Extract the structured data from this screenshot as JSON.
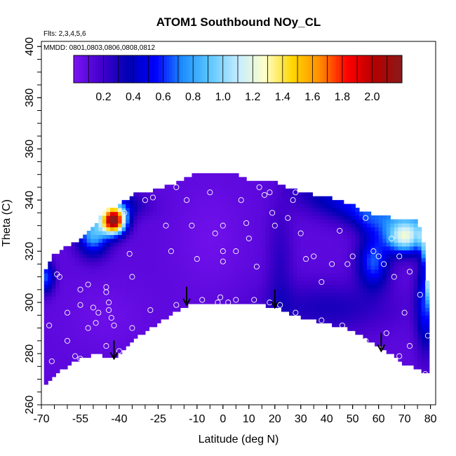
{
  "chart_data": {
    "type": "heatmap",
    "title": "ATOM1 Southbound NOy_CL",
    "flights_note": "Flts: 2,3,4,5,6",
    "dates_note": "MMDD: 0801,0803,0806,0808,0812",
    "xlabel": "Latitude (deg N)",
    "ylabel": "Theta (C)",
    "xlim": [
      -70,
      82
    ],
    "ylim": [
      260,
      402
    ],
    "x_ticks": [
      -70,
      -55,
      -40,
      -25,
      -10,
      0,
      10,
      20,
      30,
      40,
      50,
      60,
      70,
      80
    ],
    "y_ticks": [
      260,
      280,
      300,
      320,
      340,
      360,
      380,
      400
    ],
    "colorbar": {
      "range": [
        0.0,
        2.2
      ],
      "ticks": [
        0.2,
        0.4,
        0.6,
        0.8,
        1.0,
        1.2,
        1.4,
        1.6,
        1.8,
        2.0
      ],
      "colors": [
        "#7a14f2",
        "#4400cc",
        "#0000b4",
        "#0000ff",
        "#1e90ff",
        "#5ec8ff",
        "#c4ecff",
        "#ffffc8",
        "#ffd700",
        "#ff8c00",
        "#ff0000",
        "#b40000",
        "#8b1a1a"
      ]
    },
    "field": {
      "base_value": 0.1,
      "lower_boundary": [
        [
          -69,
          267
        ],
        [
          -66,
          270
        ],
        [
          -58,
          277
        ],
        [
          -48,
          280
        ],
        [
          -42,
          278
        ],
        [
          -35,
          285
        ],
        [
          -25,
          292
        ],
        [
          -16,
          298
        ],
        [
          -8,
          300
        ],
        [
          0,
          300
        ],
        [
          10,
          300
        ],
        [
          20,
          298
        ],
        [
          30,
          294
        ],
        [
          40,
          292
        ],
        [
          50,
          289
        ],
        [
          60,
          283
        ],
        [
          70,
          276
        ],
        [
          79,
          272
        ]
      ],
      "upper_boundary": [
        [
          -69,
          312
        ],
        [
          -66,
          318
        ],
        [
          -60,
          322
        ],
        [
          -55,
          324
        ],
        [
          -50,
          330
        ],
        [
          -45,
          336
        ],
        [
          -40,
          338
        ],
        [
          -35,
          342
        ],
        [
          -30,
          343
        ],
        [
          -25,
          344
        ],
        [
          -18,
          347
        ],
        [
          -12,
          350
        ],
        [
          -5,
          351
        ],
        [
          0,
          350
        ],
        [
          5,
          350
        ],
        [
          10,
          348
        ],
        [
          15,
          347
        ],
        [
          20,
          347
        ],
        [
          25,
          345
        ],
        [
          30,
          343
        ],
        [
          35,
          342
        ],
        [
          40,
          341
        ],
        [
          45,
          340
        ],
        [
          50,
          338
        ],
        [
          55,
          335
        ],
        [
          60,
          334
        ],
        [
          65,
          333
        ],
        [
          70,
          332
        ],
        [
          75,
          332
        ],
        [
          78,
          320
        ],
        [
          79,
          305
        ]
      ],
      "features": [
        {
          "name": "southern high NOy maximum",
          "lat": -42,
          "theta": 332,
          "peak": 2.1
        },
        {
          "name": "southern edge band",
          "lat": -52,
          "theta": 328,
          "peak": 1.0
        },
        {
          "name": "western edge band",
          "lat": -67,
          "theta": 312,
          "peak": 0.8
        },
        {
          "name": "northern upper band",
          "lat": 70,
          "theta": 325,
          "peak": 1.15
        },
        {
          "name": "northern mid band",
          "lat": 55,
          "theta": 315,
          "peak": 0.9
        },
        {
          "name": "eastern edge band",
          "lat": 78,
          "theta": 300,
          "peak": 0.7
        },
        {
          "name": "mid-latitude lower band",
          "lat": 40,
          "theta": 300,
          "peak": 0.3
        },
        {
          "name": "tropical column",
          "lat": 22,
          "theta": 315,
          "peak": 0.25
        },
        {
          "name": "tropical minimum",
          "lat": -5,
          "theta": 325,
          "peak": 0.05
        },
        {
          "name": "southern low region",
          "lat": -45,
          "theta": 300,
          "peak": 0.05
        }
      ]
    },
    "observations": [
      [
        -67,
        291
      ],
      [
        -64,
        311
      ],
      [
        -63,
        310
      ],
      [
        -55,
        305
      ],
      [
        -55,
        299
      ],
      [
        -52,
        307
      ],
      [
        -50,
        298
      ],
      [
        -48,
        296
      ],
      [
        -45,
        306
      ],
      [
        -45,
        304
      ],
      [
        -44,
        300
      ],
      [
        -44,
        297
      ],
      [
        -43,
        294
      ],
      [
        -38,
        335
      ],
      [
        -36,
        319
      ],
      [
        -35,
        310
      ],
      [
        -30,
        340
      ],
      [
        -27,
        341
      ],
      [
        -22,
        330
      ],
      [
        -20,
        320
      ],
      [
        -18,
        345
      ],
      [
        -14,
        340
      ],
      [
        -12,
        330
      ],
      [
        -10,
        317
      ],
      [
        -5,
        343
      ],
      [
        -3,
        327
      ],
      [
        0,
        330
      ],
      [
        0,
        320
      ],
      [
        0,
        316
      ],
      [
        -1,
        302
      ],
      [
        2,
        300
      ],
      [
        5,
        320
      ],
      [
        7,
        340
      ],
      [
        9,
        331
      ],
      [
        10,
        325
      ],
      [
        13,
        314
      ],
      [
        14,
        345
      ],
      [
        16,
        342
      ],
      [
        18,
        343
      ],
      [
        19,
        335
      ],
      [
        20,
        330
      ],
      [
        25,
        333
      ],
      [
        27,
        340
      ],
      [
        28,
        343
      ],
      [
        30,
        327
      ],
      [
        32,
        317
      ],
      [
        35,
        318
      ],
      [
        38,
        308
      ],
      [
        42,
        315
      ],
      [
        45,
        328
      ],
      [
        48,
        315
      ],
      [
        50,
        318
      ],
      [
        55,
        333
      ],
      [
        58,
        320
      ],
      [
        60,
        318
      ],
      [
        62,
        315
      ],
      [
        65,
        325
      ],
      [
        66,
        310
      ],
      [
        68,
        318
      ],
      [
        72,
        312
      ],
      [
        70,
        296
      ],
      [
        76,
        303
      ],
      [
        79,
        287
      ],
      [
        -60,
        296
      ],
      [
        -57,
        279
      ],
      [
        -55,
        278
      ],
      [
        -45,
        283
      ],
      [
        -40,
        281
      ],
      [
        -35,
        290
      ],
      [
        -28,
        297
      ],
      [
        -18,
        299
      ],
      [
        -8,
        301
      ],
      [
        -2,
        300
      ],
      [
        5,
        301
      ],
      [
        12,
        301
      ],
      [
        18,
        300
      ],
      [
        28,
        296
      ],
      [
        38,
        293
      ],
      [
        46,
        291
      ],
      [
        55,
        285
      ],
      [
        68,
        279
      ],
      [
        78,
        272
      ],
      [
        -66,
        277
      ],
      [
        -60,
        285
      ],
      [
        -52,
        290
      ],
      [
        -49,
        292
      ],
      [
        -42,
        291
      ],
      [
        22,
        299
      ],
      [
        44,
        285
      ],
      [
        63,
        288
      ],
      [
        72,
        283
      ]
    ],
    "flight_arrows": [
      {
        "lat": -42,
        "theta": 278
      },
      {
        "lat": -14,
        "theta": 299
      },
      {
        "lat": 20,
        "theta": 298
      },
      {
        "lat": 61,
        "theta": 281
      }
    ]
  }
}
